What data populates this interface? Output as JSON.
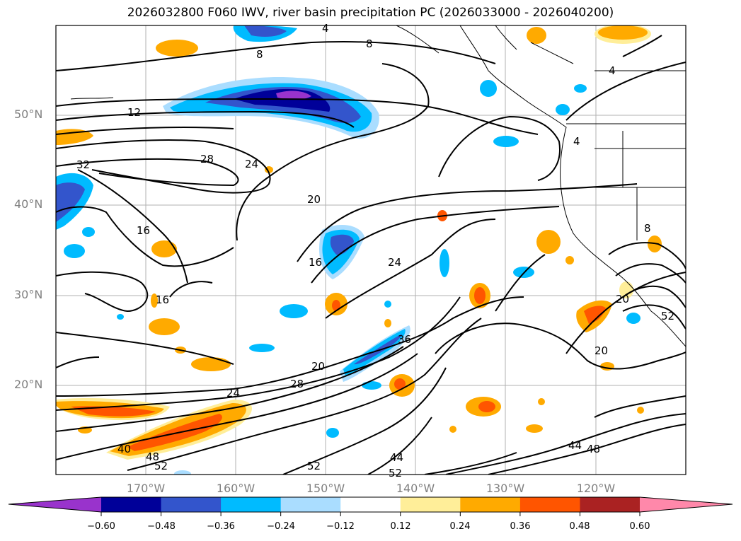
{
  "title": "2026032800 F060 IWV, river basin precipitation PC (2026033000 - 2026040200)",
  "lat_labels": [
    "50°N",
    "40°N",
    "30°N",
    "20°N"
  ],
  "lon_labels": [
    "170°W",
    "160°W",
    "150°W",
    "140°W",
    "130°W",
    "120°W"
  ],
  "colorbar": {
    "ticks": [
      "−0.60",
      "−0.48",
      "−0.36",
      "−0.24",
      "−0.12",
      "0.12",
      "0.24",
      "0.36",
      "0.48",
      "0.60"
    ],
    "colors": [
      "#9933cc",
      "#000099",
      "#3355cc",
      "#00bbff",
      "#aaddff",
      "#ffffff",
      "#ffee99",
      "#ffaa00",
      "#ff5500",
      "#aa2222",
      "#ff88aa"
    ]
  },
  "contour_labels": [
    "8",
    "12",
    "28",
    "24",
    "32",
    "20",
    "16",
    "16",
    "24",
    "16",
    "20",
    "36",
    "28",
    "24",
    "40",
    "48",
    "52",
    "52",
    "44",
    "52",
    "44",
    "48",
    "20",
    "20",
    "8",
    "4",
    "4",
    "8",
    "52",
    "4"
  ]
}
